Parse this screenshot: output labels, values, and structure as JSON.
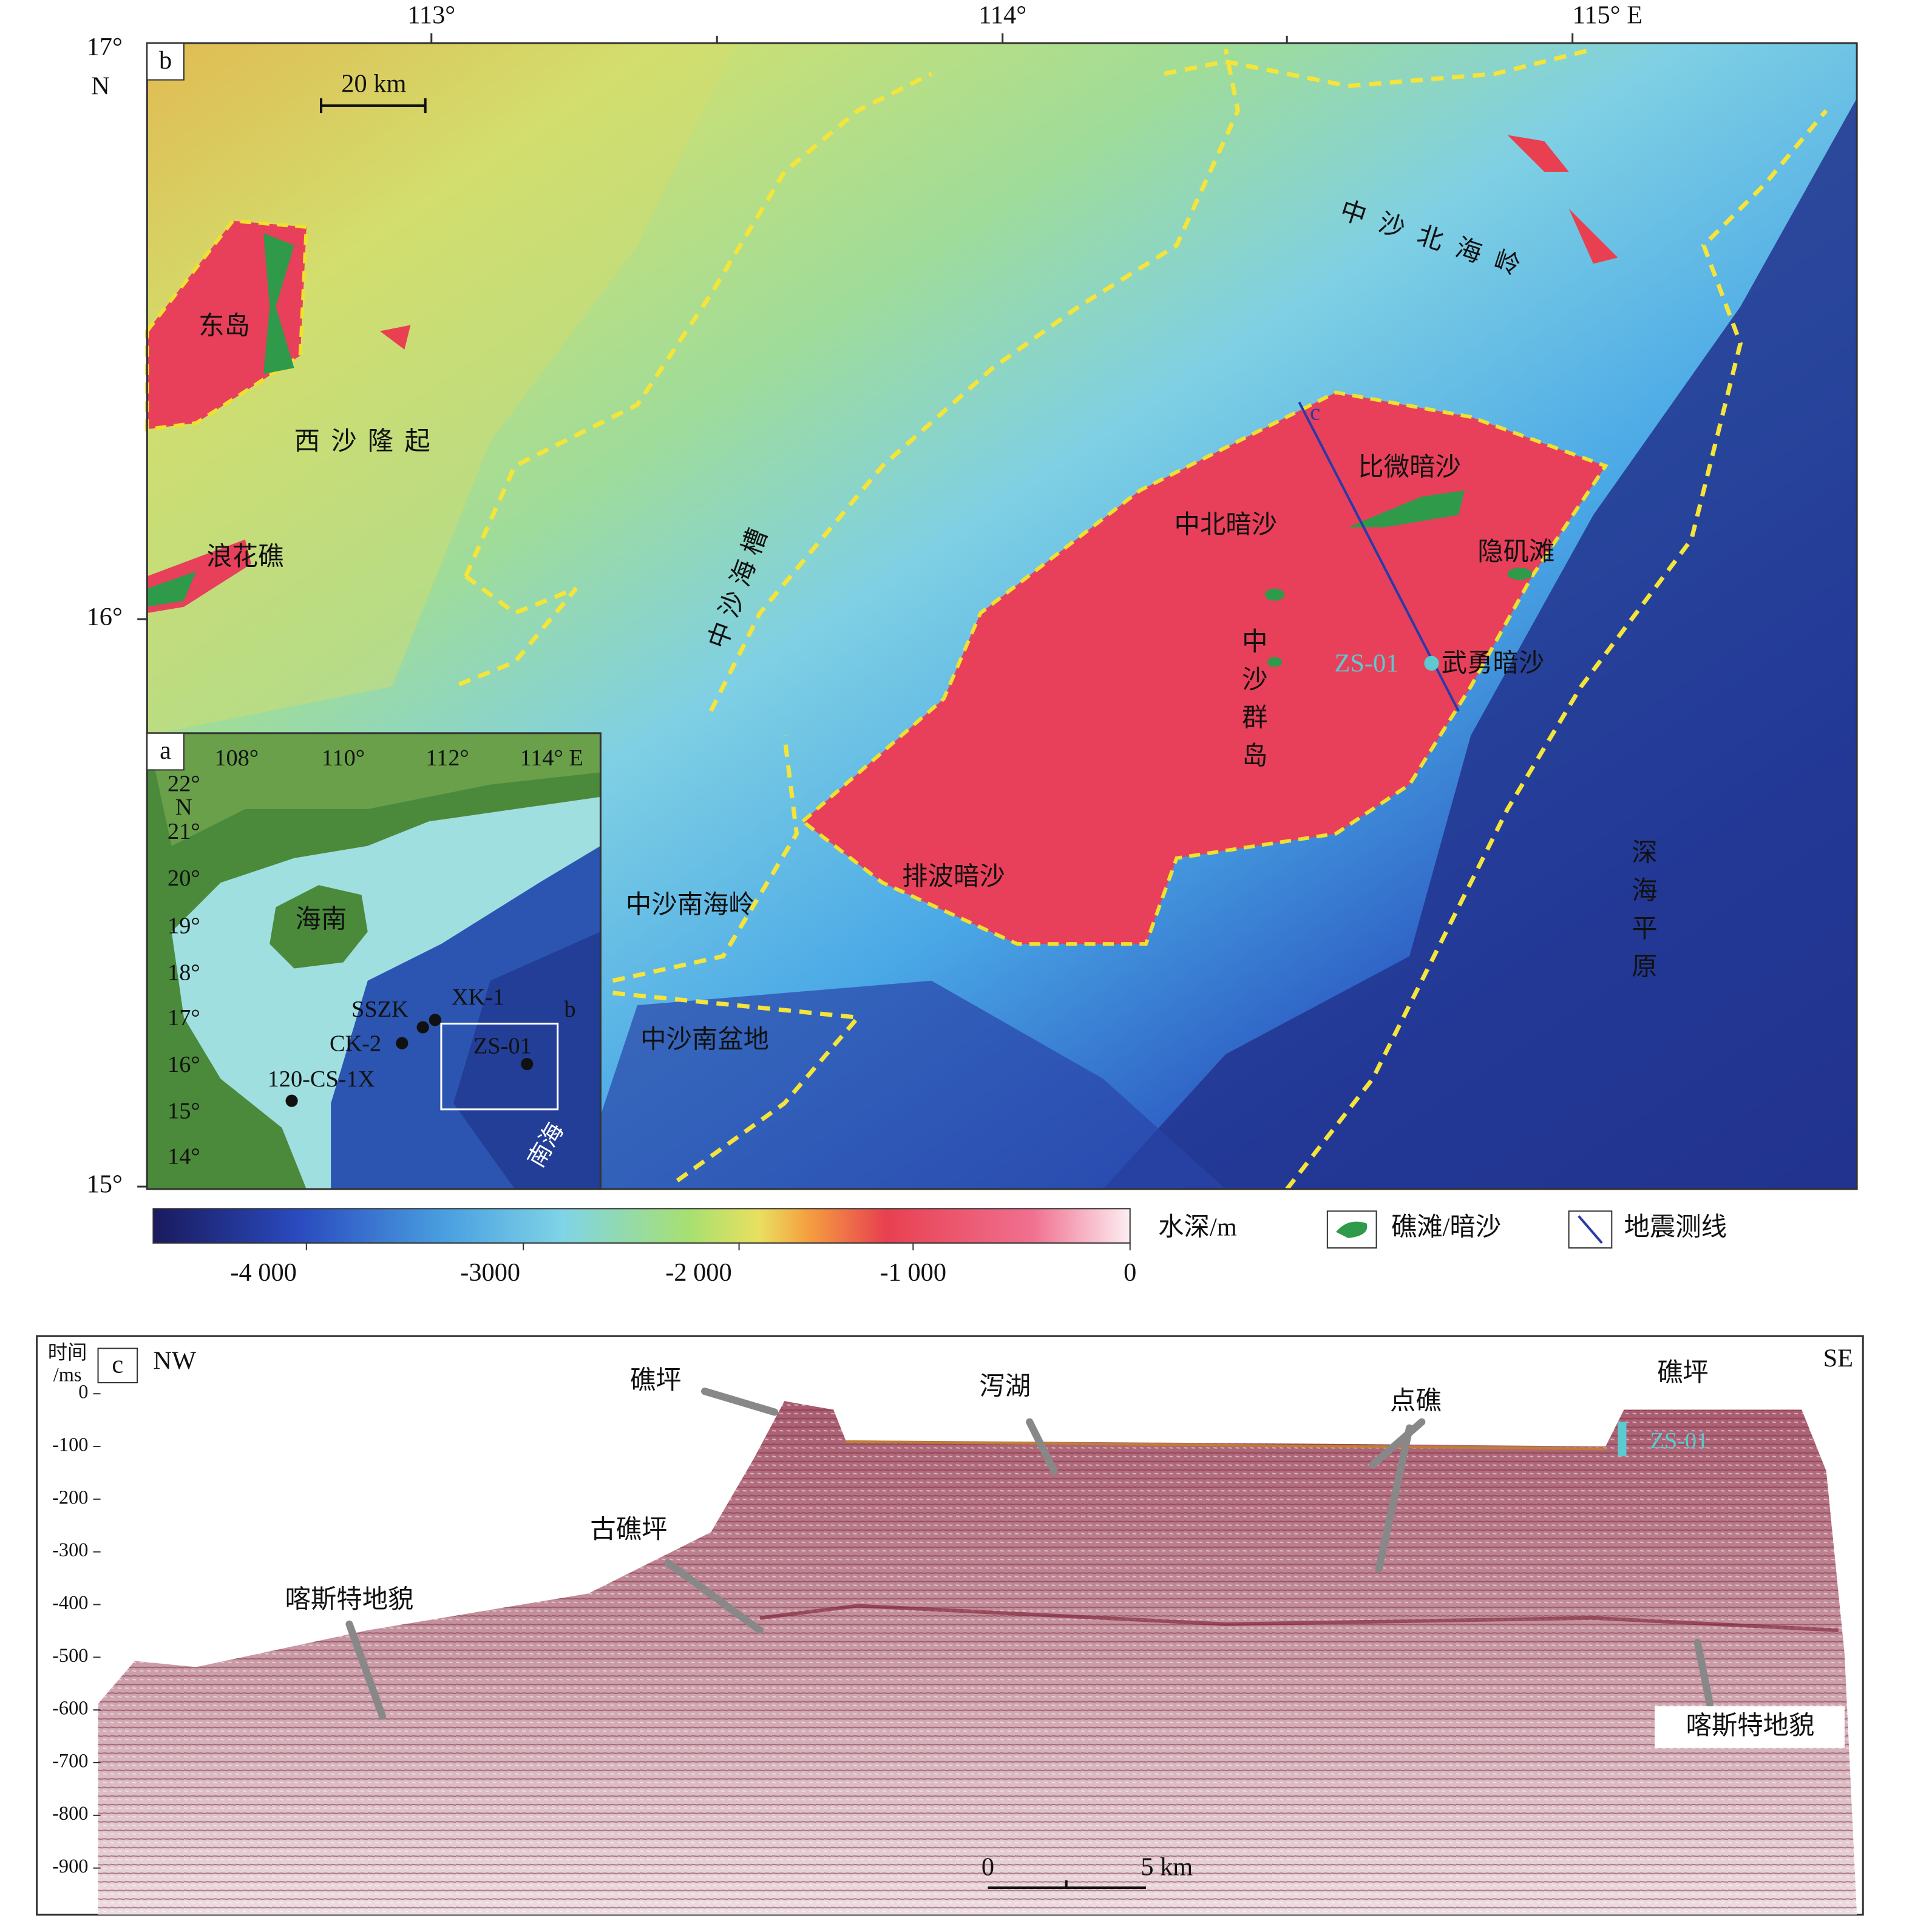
{
  "panel_b": {
    "label": "b",
    "lon_ticks": [
      "113°",
      "114°",
      "115° E"
    ],
    "lat_ticks": [
      "17°",
      "16°",
      "15°"
    ],
    "lat_unit": "N",
    "scale_bar": "20 km",
    "places": [
      "东岛",
      "西沙隆起",
      "浪花礁",
      "中沙海槽",
      "中沙北海岭",
      "比微暗沙",
      "中北暗沙",
      "隐矶滩",
      "中沙群岛",
      "ZS-01",
      "武勇暗沙",
      "排波暗沙",
      "中沙南海岭",
      "中沙南盆地",
      "深海平原"
    ],
    "profile_label": "c"
  },
  "panel_a": {
    "label": "a",
    "lon_ticks": [
      "108°",
      "110°",
      "112°",
      "114° E"
    ],
    "lat_ticks": [
      "22°",
      "21°",
      "20°",
      "19°",
      "18°",
      "17°",
      "16°",
      "15°",
      "14°"
    ],
    "lat_unit": "N",
    "places": [
      "海南",
      "SSZK",
      "XK-1",
      "CK-2",
      "ZS-01",
      "120-CS-1X",
      "b",
      "南海"
    ]
  },
  "colorbar": {
    "title": "水深/m",
    "ticks": [
      "-4 000",
      "-3000",
      "-2 000",
      "-1 000",
      "0"
    ]
  },
  "legend": [
    "礁滩/暗沙",
    "地震测线"
  ],
  "panel_c": {
    "label": "c",
    "left": "NW",
    "right": "SE",
    "axis_title": [
      "时间",
      "/ms"
    ],
    "yticks": [
      "0",
      "-100",
      "-200",
      "-300",
      "-400",
      "-500",
      "-600",
      "-700",
      "-800",
      "-900"
    ],
    "annotations": [
      "礁坪",
      "泻湖",
      "点礁",
      "礁坪",
      "古礁坪",
      "喀斯特地貌",
      "喀斯特地貌"
    ],
    "well": "ZS-01",
    "scale_bar": [
      "0",
      "5 km"
    ]
  }
}
